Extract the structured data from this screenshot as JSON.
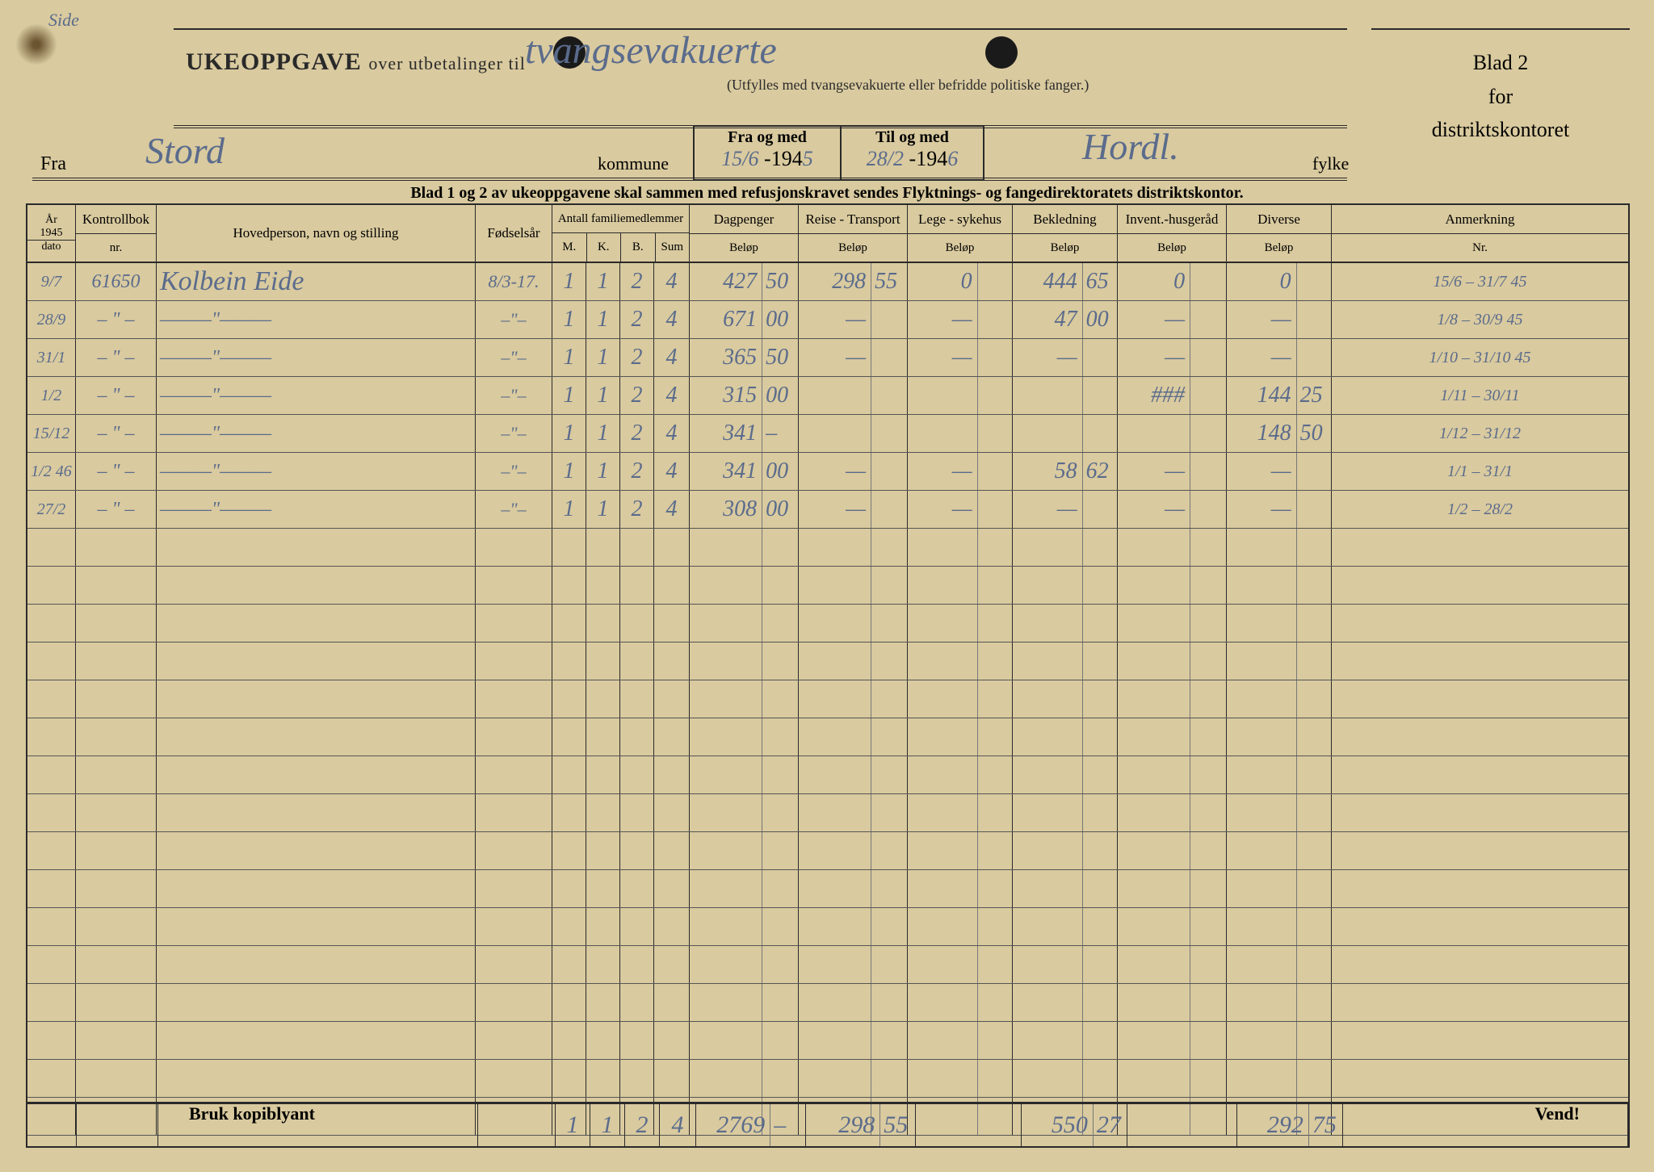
{
  "page": {
    "side_label": "Side",
    "title_bold": "UKEOPPGAVE",
    "title_sub": "over utbetalinger til",
    "handwritten_title": "tvangsevakuerte",
    "subtitle_note": "(Utfylles med tvangsevakuerte eller befridde politiske fanger.)",
    "right_block_l1": "Blad 2",
    "right_block_l2": "for",
    "right_block_l3": "distriktskontoret",
    "fra_label": "Fra",
    "fra_value": "Stord",
    "kommune_label": "kommune",
    "from_label": "Fra og med",
    "from_date": "15/6",
    "from_year_prefix": "-194",
    "from_year": "5",
    "to_label": "Til og med",
    "to_date": "28/2",
    "to_year_prefix": "-194",
    "to_year": "6",
    "fylke_value": "Hordl.",
    "fylke_label": "fylke",
    "instruction": "Blad 1 og 2 av ukeoppgavene skal sammen med refusjonskravet sendes Flyktnings- og fangedirektoratets distriktskontor.",
    "headers": {
      "year_top": "År",
      "year_val": "1945",
      "year_bot": "dato",
      "kontroll": "Kontrollbok",
      "kontroll_sub": "nr.",
      "hoved": "Hovedperson, navn og stilling",
      "fodsel": "Fødselsår",
      "fam_top": "Antall familiemedlemmer",
      "fam_m": "M.",
      "fam_k": "K.",
      "fam_b": "B.",
      "fam_sum": "Sum",
      "dag": "Dagpenger",
      "reise": "Reise - Transport",
      "lege": "Lege - sykehus",
      "bekled": "Bekledning",
      "invent": "Invent.-husgeråd",
      "diverse": "Diverse",
      "anm": "Anmerkning",
      "belop": "Beløp",
      "nr": "Nr."
    },
    "rows": [
      {
        "dato": "9/7",
        "kontroll": "61650",
        "navn": "Kolbein Eide",
        "fodsel": "8/3-17.",
        "m": "1",
        "k": "1",
        "b": "2",
        "sum": "4",
        "dag_w": "427",
        "dag_c": "50",
        "reise_w": "298",
        "reise_c": "55",
        "lege_w": "0",
        "lege_c": "",
        "bekled_w": "444",
        "bekled_c": "65",
        "invent_w": "0",
        "invent_c": "",
        "div_w": "0",
        "div_c": "",
        "anm": "15/6 – 31/7 45"
      },
      {
        "dato": "28/9",
        "kontroll": "– \" –",
        "navn": "———\"———",
        "fodsel": "–\"–",
        "m": "1",
        "k": "1",
        "b": "2",
        "sum": "4",
        "dag_w": "671",
        "dag_c": "00",
        "reise_w": "—",
        "reise_c": "",
        "lege_w": "—",
        "lege_c": "",
        "bekled_w": "47",
        "bekled_c": "00",
        "invent_w": "—",
        "invent_c": "",
        "div_w": "—",
        "div_c": "",
        "anm": "1/8 – 30/9 45"
      },
      {
        "dato": "31/1",
        "kontroll": "– \" –",
        "navn": "———\"———",
        "fodsel": "–\"–",
        "m": "1",
        "k": "1",
        "b": "2",
        "sum": "4",
        "dag_w": "365",
        "dag_c": "50",
        "reise_w": "—",
        "reise_c": "",
        "lege_w": "—",
        "lege_c": "",
        "bekled_w": "—",
        "bekled_c": "",
        "invent_w": "—",
        "invent_c": "",
        "div_w": "—",
        "div_c": "",
        "anm": "1/10 – 31/10 45"
      },
      {
        "dato": "1/2",
        "kontroll": "– \" –",
        "navn": "———\"———",
        "fodsel": "–\"–",
        "m": "1",
        "k": "1",
        "b": "2",
        "sum": "4",
        "dag_w": "315",
        "dag_c": "00",
        "reise_w": "",
        "reise_c": "",
        "lege_w": "",
        "lege_c": "",
        "bekled_w": "",
        "bekled_c": "",
        "invent_w": "###",
        "invent_c": "",
        "div_w": "144",
        "div_c": "25",
        "anm": "1/11 – 30/11"
      },
      {
        "dato": "15/12",
        "kontroll": "– \" –",
        "navn": "———\"———",
        "fodsel": "–\"–",
        "m": "1",
        "k": "1",
        "b": "2",
        "sum": "4",
        "dag_w": "341",
        "dag_c": "–",
        "reise_w": "",
        "reise_c": "",
        "lege_w": "",
        "lege_c": "",
        "bekled_w": "",
        "bekled_c": "",
        "invent_w": "",
        "invent_c": "",
        "div_w": "148",
        "div_c": "50",
        "anm": "1/12 – 31/12"
      },
      {
        "dato": "1/2 46",
        "kontroll": "– \" –",
        "navn": "———\"———",
        "fodsel": "–\"–",
        "m": "1",
        "k": "1",
        "b": "2",
        "sum": "4",
        "dag_w": "341",
        "dag_c": "00",
        "reise_w": "—",
        "reise_c": "",
        "lege_w": "—",
        "lege_c": "",
        "bekled_w": "58",
        "bekled_c": "62",
        "invent_w": "—",
        "invent_c": "",
        "div_w": "—",
        "div_c": "",
        "anm": "1/1 – 31/1"
      },
      {
        "dato": "27/2",
        "kontroll": "– \" –",
        "navn": "———\"———",
        "fodsel": "–\"–",
        "m": "1",
        "k": "1",
        "b": "2",
        "sum": "4",
        "dag_w": "308",
        "dag_c": "00",
        "reise_w": "—",
        "reise_c": "",
        "lege_w": "—",
        "lege_c": "",
        "bekled_w": "—",
        "bekled_c": "",
        "invent_w": "—",
        "invent_c": "",
        "div_w": "—",
        "div_c": "",
        "anm": "1/2 – 28/2"
      }
    ],
    "empty_rows": 16,
    "totals": {
      "m": "1",
      "k": "1",
      "b": "2",
      "sum": "4",
      "dag_w": "2769",
      "dag_c": "–",
      "reise_w": "298",
      "reise_c": "55",
      "bekled_w": "550",
      "bekled_c": "27",
      "div_w": "292",
      "div_c": "75"
    },
    "bruk": "Bruk kopiblyant",
    "vend": "Vend!"
  },
  "colors": {
    "paper": "#d9ca9f",
    "ink": "#2a2a2a",
    "pencil": "#5a6b8c"
  }
}
